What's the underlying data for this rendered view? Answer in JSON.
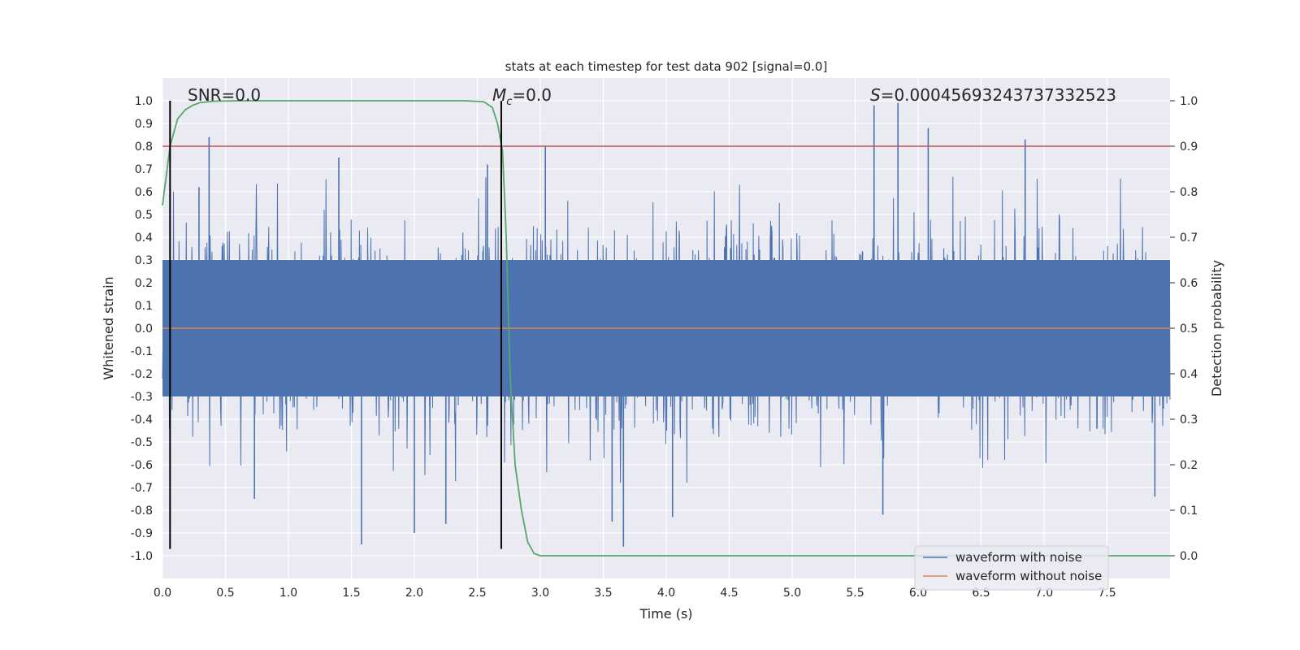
{
  "chart_data": {
    "type": "line",
    "title": "stats at each timestep for test data 902 [signal=0.0]",
    "xlabel": "Time (s)",
    "ylabel": "Whitened strain",
    "y2label": "Detection probability",
    "xlim": [
      0.0,
      8.0
    ],
    "ylim": [
      -1.1,
      1.1
    ],
    "y2lim": [
      -0.05,
      1.05
    ],
    "xticks": [
      "0.0",
      "0.5",
      "1.0",
      "1.5",
      "2.0",
      "2.5",
      "3.0",
      "3.5",
      "4.0",
      "4.5",
      "5.0",
      "5.5",
      "6.0",
      "6.5",
      "7.0",
      "7.5"
    ],
    "yticks": [
      "-1.0",
      "-0.9",
      "-0.8",
      "-0.7",
      "-0.6",
      "-0.5",
      "-0.4",
      "-0.3",
      "-0.2",
      "-0.1",
      "0.0",
      "0.1",
      "0.2",
      "0.3",
      "0.4",
      "0.5",
      "0.6",
      "0.7",
      "0.8",
      "0.9",
      "1.0"
    ],
    "y2ticks": [
      "0.0",
      "0.1",
      "0.2",
      "0.3",
      "0.4",
      "0.5",
      "0.6",
      "0.7",
      "0.8",
      "0.9",
      "1.0"
    ],
    "grid": true,
    "legend": "bottom-right",
    "annotations": {
      "snr": "SNR=0.0",
      "mc": "=0.0",
      "mc_symbol": "M",
      "mc_sub": "c",
      "s": "=0.00045693243737332523",
      "s_symbol": "S"
    },
    "colors": {
      "noisy": "#4c72b0",
      "clean": "#dd8452",
      "prob": "#55a868",
      "threshold": "#c44e52",
      "marker": "#000000",
      "axes_bg": "#eaeaf2"
    },
    "series": [
      {
        "name": "waveform with noise",
        "axis": "left",
        "style": "dense-noise",
        "band": [
          -0.3,
          0.3
        ],
        "seed": 902,
        "peaks": [
          [
            0.37,
            0.84
          ],
          [
            0.29,
            0.62
          ],
          [
            1.4,
            0.75
          ],
          [
            1.58,
            -0.95
          ],
          [
            2.0,
            -0.9
          ],
          [
            2.25,
            -0.86
          ],
          [
            3.04,
            0.8
          ],
          [
            3.57,
            -0.85
          ],
          [
            3.66,
            -0.96
          ],
          [
            4.05,
            -0.83
          ],
          [
            5.65,
            0.98
          ],
          [
            5.72,
            -0.82
          ],
          [
            5.84,
            0.99
          ],
          [
            6.08,
            0.88
          ],
          [
            6.85,
            0.83
          ],
          [
            0.73,
            -0.75
          ],
          [
            7.88,
            -0.74
          ],
          [
            2.58,
            0.72
          ]
        ]
      },
      {
        "name": "waveform without noise",
        "axis": "left",
        "x": [
          0.0,
          8.0
        ],
        "y": [
          0.0,
          0.0
        ]
      },
      {
        "axis": "right",
        "x": [
          0.0,
          0.06,
          0.12,
          0.18,
          0.24,
          0.3,
          0.4,
          0.6,
          1.0,
          2.0,
          2.4,
          2.55,
          2.62,
          2.66,
          2.7,
          2.73,
          2.76,
          2.8,
          2.85,
          2.9,
          2.95,
          3.0,
          3.2,
          4.0,
          5.0,
          6.0,
          7.0,
          8.0
        ],
        "y": [
          0.77,
          0.9,
          0.96,
          0.98,
          0.99,
          0.996,
          0.999,
          1.0,
          1.0,
          1.0,
          1.0,
          0.998,
          0.985,
          0.95,
          0.89,
          0.7,
          0.4,
          0.2,
          0.1,
          0.03,
          0.005,
          0.0,
          0.0,
          0.0,
          0.0,
          0.0,
          0.0,
          0.0
        ]
      },
      {
        "axis": "right",
        "x": [
          0.0,
          8.0
        ],
        "y": [
          0.9,
          0.9
        ]
      }
    ],
    "vlines": [
      {
        "x": 0.06,
        "ymin": -0.97,
        "ymax": 1.0
      },
      {
        "x": 2.69,
        "ymin": -0.97,
        "ymax": 1.0
      }
    ]
  }
}
